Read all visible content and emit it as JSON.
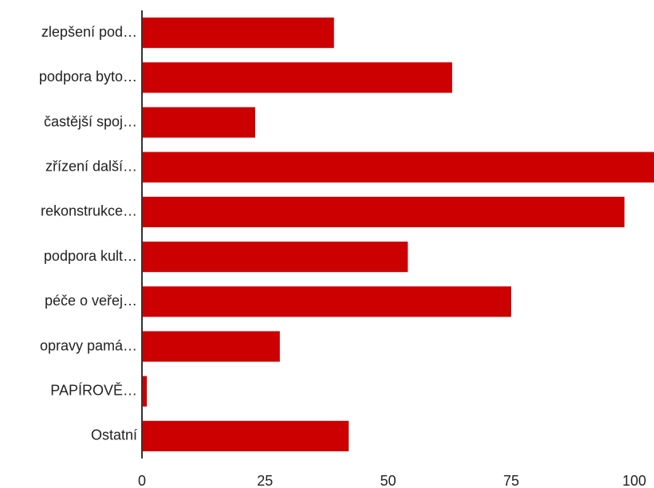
{
  "chart_data": {
    "type": "bar",
    "orientation": "horizontal",
    "categories": [
      "zlepšení pod…",
      "podpora byto…",
      "častější spoj…",
      "zřízení další…",
      "rekonstrukce…",
      "podpora kult…",
      "péče o veřej…",
      "opravy pamá…",
      "PAPÍROVĚ…",
      "Ostatní"
    ],
    "values": [
      39,
      63,
      23,
      104,
      98,
      54,
      75,
      28,
      1,
      42
    ],
    "color": "#cc0000",
    "xlim": [
      0,
      104
    ],
    "xticks": [
      0,
      25,
      50,
      75,
      100
    ],
    "grid": false
  }
}
